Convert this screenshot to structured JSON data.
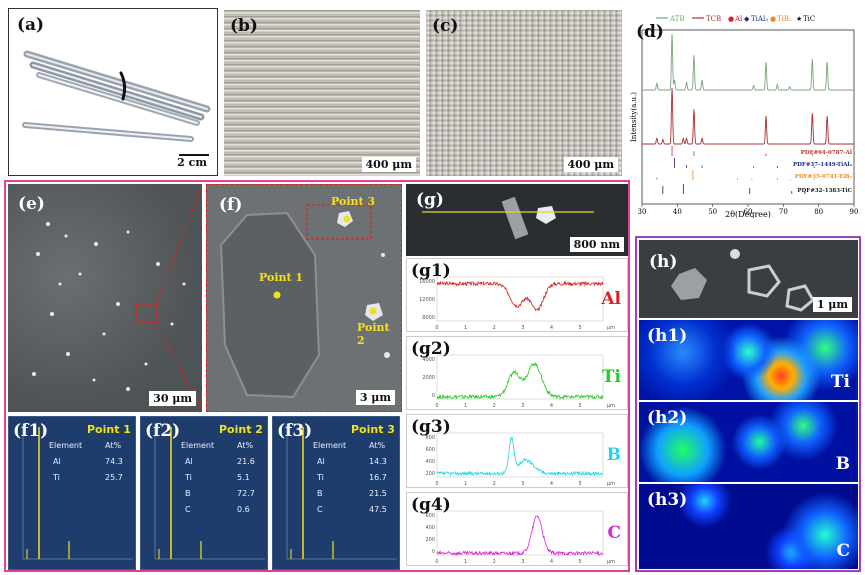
{
  "panels": {
    "a": {
      "label": "(a)",
      "scale": "2 cm"
    },
    "b": {
      "label": "(b)",
      "scale": "400 μm"
    },
    "c": {
      "label": "(c)",
      "scale": "400 μm"
    },
    "d": {
      "label": "(d)"
    },
    "e": {
      "label": "(e)",
      "scale": "30 μm"
    },
    "f": {
      "label": "(f)",
      "scale": "3 μm",
      "points": [
        "Point 1",
        "Point 2",
        "Point 3"
      ]
    },
    "g": {
      "label": "(g)",
      "scale": "800 nm"
    },
    "h": {
      "label": "(h)",
      "scale": "1 μm"
    },
    "h1": {
      "label": "(h1)",
      "element": "Ti"
    },
    "h2": {
      "label": "(h2)",
      "element": "B"
    },
    "h3": {
      "label": "(h3)",
      "element": "C"
    }
  },
  "eds": [
    {
      "label": "(f1)",
      "title": "Point 1",
      "header": [
        "Element",
        "At%"
      ],
      "rows": [
        [
          "Al",
          "74.3"
        ],
        [
          "Ti",
          "25.7"
        ]
      ]
    },
    {
      "label": "(f2)",
      "title": "Point 2",
      "header": [
        "Element",
        "At%"
      ],
      "rows": [
        [
          "Al",
          "21.6"
        ],
        [
          "Ti",
          "5.1"
        ],
        [
          "B",
          "72.7"
        ],
        [
          "C",
          "0.6"
        ]
      ]
    },
    {
      "label": "(f3)",
      "title": "Point 3",
      "header": [
        "Element",
        "At%"
      ],
      "rows": [
        [
          "Al",
          "14.3"
        ],
        [
          "Ti",
          "16.7"
        ],
        [
          "B",
          "21.5"
        ],
        [
          "C",
          "47.5"
        ]
      ]
    }
  ],
  "linescans": [
    {
      "label": "(g1)",
      "element": "Al",
      "color": "#e02020",
      "yticks": [
        "16000",
        "12000",
        "8000"
      ]
    },
    {
      "label": "(g2)",
      "element": "Ti",
      "color": "#22cc22",
      "yticks": [
        "4000",
        "2000",
        "0"
      ]
    },
    {
      "label": "(g3)",
      "element": "B",
      "color": "#22d8e0",
      "yticks": [
        "800",
        "600",
        "400",
        "200"
      ]
    },
    {
      "label": "(g4)",
      "element": "C",
      "color": "#e020e0",
      "yticks": [
        "600",
        "400",
        "200",
        "0"
      ]
    }
  ],
  "linescan_xticks": [
    "0",
    "1",
    "2",
    "3",
    "4",
    "5"
  ],
  "linescan_xunit": "μm",
  "chart_data": {
    "type": "line",
    "xlabel": "2θ(Degree)",
    "ylabel": "Intensity(a.u.)",
    "xlim": [
      30,
      90
    ],
    "xticks": [
      "30",
      "40",
      "50",
      "60",
      "70",
      "80",
      "90"
    ],
    "legend": {
      "lines": [
        {
          "name": "ATB",
          "color": "#7aa67a"
        },
        {
          "name": "TCB",
          "color": "#a83232"
        }
      ],
      "markers": [
        {
          "name": "Al",
          "symbol": "●",
          "color": "#e02020"
        },
        {
          "name": "TiAl₃",
          "symbol": "◆",
          "color": "#1a2a8c"
        },
        {
          "name": "TiB₂",
          "symbol": "●",
          "color": "#f08a1a"
        },
        {
          "name": "TiC",
          "symbol": "★",
          "color": "#111111"
        }
      ]
    },
    "series": [
      {
        "name": "ATB",
        "color": "#7aa67a",
        "peaks": [
          [
            38.5,
            1.0
          ],
          [
            44.7,
            0.62
          ],
          [
            65.1,
            0.5
          ],
          [
            78.2,
            0.55
          ],
          [
            82.4,
            0.5
          ],
          [
            34.2,
            0.12
          ],
          [
            39.2,
            0.18
          ],
          [
            42.6,
            0.14
          ],
          [
            47.0,
            0.18
          ],
          [
            61.6,
            0.08
          ],
          [
            68.3,
            0.1
          ],
          [
            71.8,
            0.06
          ]
        ]
      },
      {
        "name": "TCB",
        "color": "#a83232",
        "peaks": [
          [
            38.5,
            1.0
          ],
          [
            44.7,
            0.62
          ],
          [
            65.1,
            0.5
          ],
          [
            78.2,
            0.55
          ],
          [
            82.4,
            0.5
          ],
          [
            34.2,
            0.1
          ],
          [
            35.9,
            0.08
          ],
          [
            41.7,
            0.1
          ],
          [
            42.6,
            0.1
          ],
          [
            47.0,
            0.1
          ]
        ]
      }
    ],
    "references": [
      {
        "name": "PDF#04-0787-Al",
        "color": "#c03030",
        "lines": [
          [
            38.5,
            1.0
          ],
          [
            44.7,
            0.47
          ],
          [
            65.1,
            0.22
          ],
          [
            78.2,
            0.24
          ],
          [
            82.4,
            0.07
          ]
        ]
      },
      {
        "name": "PDF#37-1449-TiAl₃",
        "color": "#1a2a8c",
        "lines": [
          [
            24.2,
            0.2
          ],
          [
            39.2,
            1.0
          ],
          [
            42.6,
            0.3
          ],
          [
            47.0,
            0.25
          ],
          [
            61.6,
            0.15
          ],
          [
            68.3,
            0.2
          ],
          [
            78.7,
            0.15
          ]
        ]
      },
      {
        "name": "PDF#35-0741-TiB₂",
        "color": "#f08a1a",
        "lines": [
          [
            34.2,
            0.3
          ],
          [
            44.4,
            1.0
          ],
          [
            57.0,
            0.2
          ],
          [
            61.1,
            0.15
          ],
          [
            68.3,
            0.2
          ],
          [
            71.9,
            0.1
          ],
          [
            78.8,
            0.15
          ]
        ]
      },
      {
        "name": "PDF#32-1383-TiC",
        "color": "#222222",
        "lines": [
          [
            35.9,
            0.8
          ],
          [
            41.7,
            1.0
          ],
          [
            60.5,
            0.6
          ],
          [
            72.4,
            0.3
          ],
          [
            76.1,
            0.2
          ]
        ]
      }
    ]
  }
}
